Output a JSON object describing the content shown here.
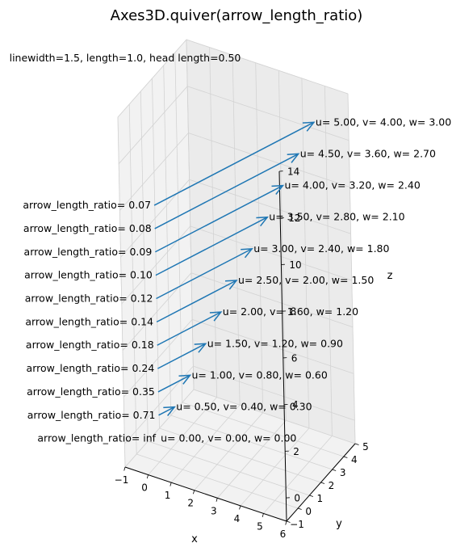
{
  "chart_data": {
    "type": "quiver3d",
    "title": "Axes3D.quiver(arrow_length_ratio)",
    "subtitle": "linewidth=1.5, length=1.0, head length=0.50",
    "xlabel": "x",
    "ylabel": "y",
    "zlabel": "z",
    "xlim": [
      -1,
      6
    ],
    "ylim": [
      -1,
      5
    ],
    "zlim": [
      -1,
      14
    ],
    "xticks": [
      "−1",
      "0",
      "1",
      "2",
      "3",
      "4",
      "5",
      "6"
    ],
    "yticks": [
      "−1",
      "0",
      "1",
      "2",
      "3",
      "4",
      "5"
    ],
    "zticks": [
      "0",
      "2",
      "4",
      "6",
      "8",
      "10",
      "12",
      "14"
    ],
    "arrow_color": "#1f77b4",
    "arrows": [
      {
        "ratio_label": "arrow_length_ratio= inf",
        "vec_label": "u= 0.00, v= 0.00, w= 0.00",
        "u": 0.0,
        "v": 0.0,
        "w": 0.0
      },
      {
        "ratio_label": "arrow_length_ratio= 0.71",
        "vec_label": "u= 0.50, v= 0.40, w= 0.30",
        "u": 0.5,
        "v": 0.4,
        "w": 0.3
      },
      {
        "ratio_label": "arrow_length_ratio= 0.35",
        "vec_label": "u= 1.00, v= 0.80, w= 0.60",
        "u": 1.0,
        "v": 0.8,
        "w": 0.6
      },
      {
        "ratio_label": "arrow_length_ratio= 0.24",
        "vec_label": "u= 1.50, v= 1.20, w= 0.90",
        "u": 1.5,
        "v": 1.2,
        "w": 0.9
      },
      {
        "ratio_label": "arrow_length_ratio= 0.18",
        "vec_label": "u= 2.00, v= 1.60, w= 1.20",
        "u": 2.0,
        "v": 1.6,
        "w": 1.2
      },
      {
        "ratio_label": "arrow_length_ratio= 0.14",
        "vec_label": "u= 2.50, v= 2.00, w= 1.50",
        "u": 2.5,
        "v": 2.0,
        "w": 1.5
      },
      {
        "ratio_label": "arrow_length_ratio= 0.12",
        "vec_label": "u= 3.00, v= 2.40, w= 1.80",
        "u": 3.0,
        "v": 2.4,
        "w": 1.8
      },
      {
        "ratio_label": "arrow_length_ratio= 0.10",
        "vec_label": "u= 3.50, v= 2.80, w= 2.10",
        "u": 3.5,
        "v": 2.8,
        "w": 2.1
      },
      {
        "ratio_label": "arrow_length_ratio= 0.09",
        "vec_label": "u= 4.00, v= 3.20, w= 2.40",
        "u": 4.0,
        "v": 3.2,
        "w": 2.4
      },
      {
        "ratio_label": "arrow_length_ratio= 0.08",
        "vec_label": "u= 4.50, v= 3.60, w= 2.70",
        "u": 4.5,
        "v": 3.6,
        "w": 2.7
      },
      {
        "ratio_label": "arrow_length_ratio= 0.07",
        "vec_label": "u= 5.00, v= 4.00, w= 3.00",
        "u": 5.0,
        "v": 4.0,
        "w": 3.0
      }
    ]
  }
}
